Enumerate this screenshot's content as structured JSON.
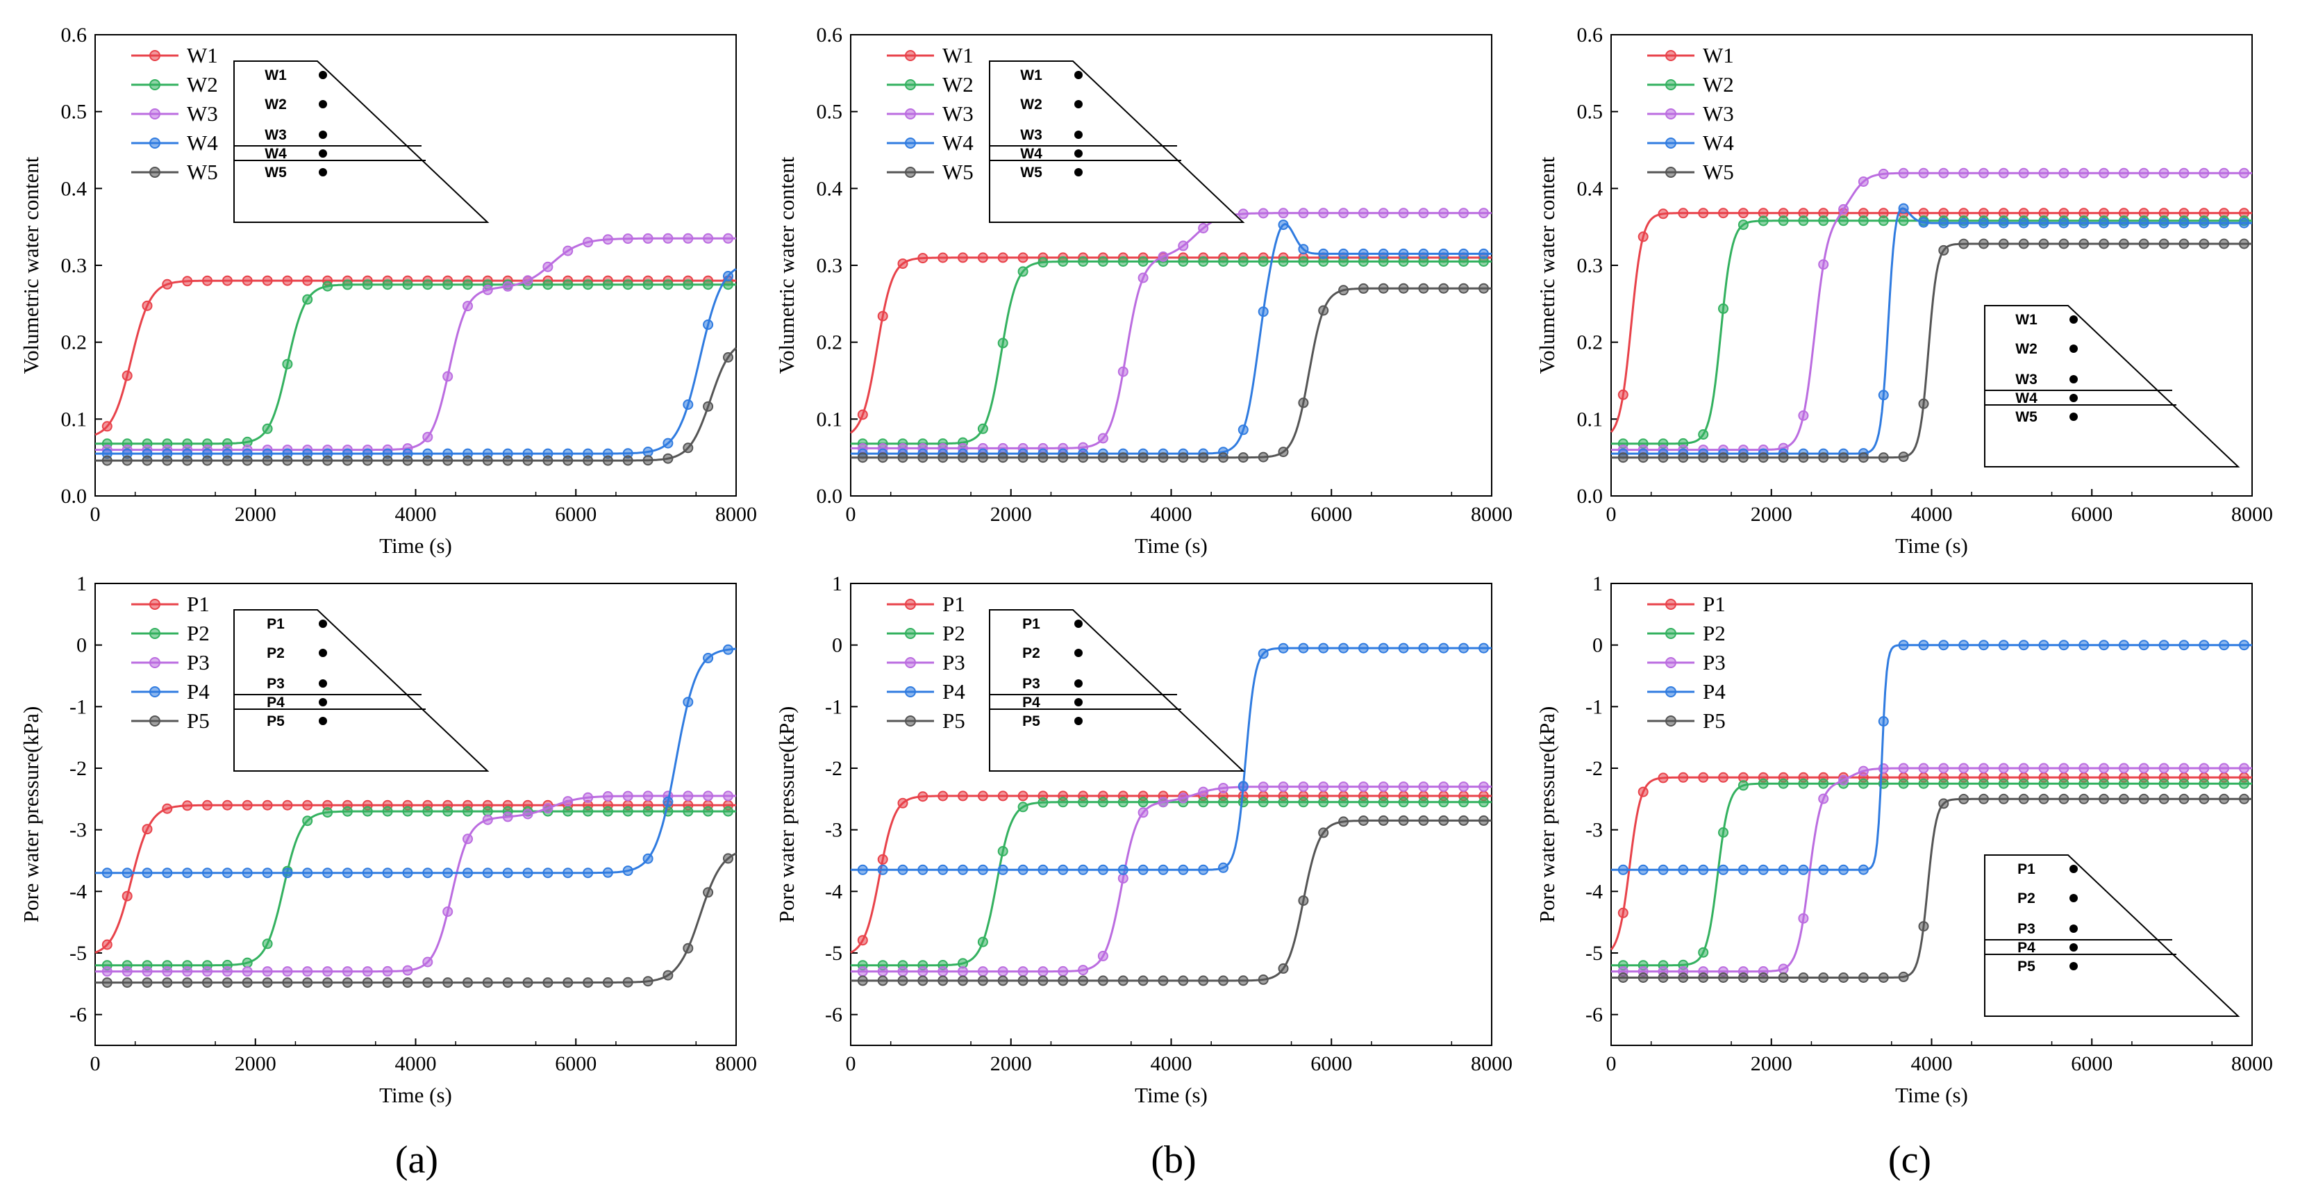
{
  "colors": {
    "W1": "#e8424a",
    "W2": "#33b15f",
    "W3": "#bb6ce0",
    "W4": "#2f7be0",
    "W5": "#555555",
    "P1": "#e8424a",
    "P2": "#33b15f",
    "P3": "#bb6ce0",
    "P4": "#2f7be0",
    "P5": "#555555"
  },
  "panels": [
    {
      "label": "(a)",
      "inset_labels": [
        "W1",
        "W2",
        "W3",
        "W4",
        "W5"
      ],
      "inset_labels_p": [
        "P1",
        "P2",
        "P3",
        "P4",
        "P5"
      ]
    },
    {
      "label": "(b)"
    },
    {
      "label": "(c)"
    }
  ],
  "chart_data": [
    {
      "id": "a-top",
      "type": "line",
      "title": "",
      "xlabel": "Time (s)",
      "ylabel": "Volumetric water content",
      "xlim": [
        0,
        8000
      ],
      "ylim": [
        0,
        0.6
      ],
      "xticks": [
        "0",
        "2000",
        "4000",
        "6000",
        "8000"
      ],
      "yticks": [
        "0.0",
        "0.1",
        "0.2",
        "0.3",
        "0.4",
        "0.5",
        "0.6"
      ],
      "legend": [
        "W1",
        "W2",
        "W3",
        "W4",
        "W5"
      ],
      "legend_position": "top-left",
      "inset": {
        "position": "top-left",
        "labels": [
          "W1",
          "W2",
          "W3",
          "W4",
          "W5"
        ]
      },
      "series": [
        {
          "name": "W1",
          "before": 0.075,
          "after": 0.28,
          "t_rise": 450,
          "width": 120
        },
        {
          "name": "W2",
          "before": 0.068,
          "after": 0.275,
          "t_rise": 2400,
          "width": 110
        },
        {
          "name": "W3",
          "before": 0.06,
          "after": 0.27,
          "t_rise": 4420,
          "width": 110,
          "later": {
            "t": 5700,
            "value": 0.335,
            "width": 180
          }
        },
        {
          "name": "W4",
          "before": 0.055,
          "after": 0.305,
          "t_rise": 7550,
          "width": 140
        },
        {
          "name": "W5",
          "before": 0.046,
          "after": 0.205,
          "t_rise": 7680,
          "width": 130
        }
      ]
    },
    {
      "id": "b-top",
      "type": "line",
      "title": "",
      "xlabel": "Time (s)",
      "ylabel": "Volumetric water content",
      "xlim": [
        0,
        8000
      ],
      "ylim": [
        0,
        0.6
      ],
      "xticks": [
        "0",
        "2000",
        "4000",
        "6000",
        "8000"
      ],
      "yticks": [
        "0.0",
        "0.1",
        "0.2",
        "0.3",
        "0.4",
        "0.5",
        "0.6"
      ],
      "legend": [
        "W1",
        "W2",
        "W3",
        "W4",
        "W5"
      ],
      "legend_position": "top-left",
      "inset": {
        "position": "top-left",
        "labels": [
          "W1",
          "W2",
          "W3",
          "W4",
          "W5"
        ]
      },
      "series": [
        {
          "name": "W1",
          "before": 0.075,
          "after": 0.31,
          "t_rise": 330,
          "width": 95
        },
        {
          "name": "W2",
          "before": 0.068,
          "after": 0.305,
          "t_rise": 1880,
          "width": 95
        },
        {
          "name": "W3",
          "before": 0.062,
          "after": 0.31,
          "t_rise": 3440,
          "width": 100,
          "later": {
            "t": 4300,
            "value": 0.368,
            "width": 150
          }
        },
        {
          "name": "W4",
          "before": 0.055,
          "after": 0.315,
          "t_rise": 5080,
          "width": 90,
          "peak": {
            "t": 5400,
            "value": 0.36
          }
        },
        {
          "name": "W5",
          "before": 0.05,
          "after": 0.27,
          "t_rise": 5720,
          "width": 95
        }
      ]
    },
    {
      "id": "c-top",
      "type": "line",
      "title": "",
      "xlabel": "Time (s)",
      "ylabel": "Volumetric water content",
      "xlim": [
        0,
        8000
      ],
      "ylim": [
        0,
        0.6
      ],
      "xticks": [
        "0",
        "2000",
        "4000",
        "6000",
        "8000"
      ],
      "yticks": [
        "0.0",
        "0.1",
        "0.2",
        "0.3",
        "0.4",
        "0.5",
        "0.6"
      ],
      "legend": [
        "W1",
        "W2",
        "W3",
        "W4",
        "W5"
      ],
      "legend_position": "top-left",
      "inset": {
        "position": "bottom-right",
        "labels": [
          "W1",
          "W2",
          "W3",
          "W4",
          "W5"
        ]
      },
      "series": [
        {
          "name": "W1",
          "before": 0.075,
          "after": 0.368,
          "t_rise": 250,
          "width": 70
        },
        {
          "name": "W2",
          "before": 0.068,
          "after": 0.358,
          "t_rise": 1370,
          "width": 70
        },
        {
          "name": "W3",
          "before": 0.06,
          "after": 0.36,
          "t_rise": 2540,
          "width": 80,
          "later": {
            "t": 3000,
            "value": 0.42,
            "width": 100
          }
        },
        {
          "name": "W4",
          "before": 0.055,
          "after": 0.355,
          "t_rise": 3460,
          "width": 45,
          "peak": {
            "t": 3560,
            "value": 0.385
          }
        },
        {
          "name": "W5",
          "before": 0.05,
          "after": 0.328,
          "t_rise": 3960,
          "width": 55
        }
      ]
    },
    {
      "id": "a-bottom",
      "type": "line",
      "title": "",
      "xlabel": "Time (s)",
      "ylabel": "Pore water pressure(kPa)",
      "xlim": [
        0,
        8000
      ],
      "ylim": [
        -6.5,
        1
      ],
      "xticks": [
        "0",
        "2000",
        "4000",
        "6000",
        "8000"
      ],
      "yticks": [
        "-6",
        "-5",
        "-4",
        "-3",
        "-2",
        "-1",
        "0",
        "1"
      ],
      "legend": [
        "P1",
        "P2",
        "P3",
        "P4",
        "P5"
      ],
      "legend_position": "top-left",
      "inset": {
        "position": "top-left",
        "labels": [
          "P1",
          "P2",
          "P3",
          "P4",
          "P5"
        ]
      },
      "series": [
        {
          "name": "P1",
          "before": -5.05,
          "after": -2.6,
          "t_rise": 450,
          "width": 120
        },
        {
          "name": "P2",
          "before": -5.2,
          "after": -2.7,
          "t_rise": 2350,
          "width": 110
        },
        {
          "name": "P3",
          "before": -5.3,
          "after": -2.8,
          "t_rise": 4450,
          "width": 110,
          "later": {
            "t": 5700,
            "value": -2.45,
            "width": 180
          }
        },
        {
          "name": "P4",
          "before": -3.7,
          "after": -0.05,
          "t_rise": 7250,
          "width": 130
        },
        {
          "name": "P5",
          "before": -5.48,
          "after": -3.3,
          "t_rise": 7550,
          "width": 140
        }
      ]
    },
    {
      "id": "b-bottom",
      "type": "line",
      "title": "",
      "xlabel": "Time (s)",
      "ylabel": "Pore water pressure(kPa)",
      "xlim": [
        0,
        8000
      ],
      "ylim": [
        -6.5,
        1
      ],
      "xticks": [
        "0",
        "2000",
        "4000",
        "6000",
        "8000"
      ],
      "yticks": [
        "-6",
        "-5",
        "-4",
        "-3",
        "-2",
        "-1",
        "0",
        "1"
      ],
      "legend": [
        "P1",
        "P2",
        "P3",
        "P4",
        "P5"
      ],
      "legend_position": "top-left",
      "inset": {
        "position": "top-left",
        "labels": [
          "P1",
          "P2",
          "P3",
          "P4",
          "P5"
        ]
      },
      "series": [
        {
          "name": "P1",
          "before": -5.05,
          "after": -2.45,
          "t_rise": 360,
          "width": 95
        },
        {
          "name": "P2",
          "before": -5.2,
          "after": -2.55,
          "t_rise": 1820,
          "width": 95
        },
        {
          "name": "P3",
          "before": -5.3,
          "after": -2.55,
          "t_rise": 3380,
          "width": 100,
          "later": {
            "t": 4300,
            "value": -2.3,
            "width": 150
          }
        },
        {
          "name": "P4",
          "before": -3.65,
          "after": -0.05,
          "t_rise": 4930,
          "width": 60
        },
        {
          "name": "P5",
          "before": -5.45,
          "after": -2.85,
          "t_rise": 5650,
          "width": 100
        }
      ]
    },
    {
      "id": "c-bottom",
      "type": "line",
      "title": "",
      "xlabel": "Time (s)",
      "ylabel": "Pore water pressure(kPa)",
      "xlim": [
        0,
        8000
      ],
      "ylim": [
        -6.5,
        1
      ],
      "xticks": [
        "0",
        "2000",
        "4000",
        "6000",
        "8000"
      ],
      "yticks": [
        "-6",
        "-5",
        "-4",
        "-3",
        "-2",
        "-1",
        "0",
        "1"
      ],
      "legend": [
        "P1",
        "P2",
        "P3",
        "P4",
        "P5"
      ],
      "legend_position": "top-left",
      "inset": {
        "position": "bottom-right",
        "labels": [
          "P1",
          "P2",
          "P3",
          "P4",
          "P5"
        ]
      },
      "series": [
        {
          "name": "P1",
          "before": -5.05,
          "after": -2.15,
          "t_rise": 230,
          "width": 70
        },
        {
          "name": "P2",
          "before": -5.2,
          "after": -2.25,
          "t_rise": 1330,
          "width": 70
        },
        {
          "name": "P3",
          "before": -5.3,
          "after": -2.25,
          "t_rise": 2470,
          "width": 75,
          "later": {
            "t": 3000,
            "value": -2.0,
            "width": 100
          }
        },
        {
          "name": "P4",
          "before": -3.65,
          "after": 0.0,
          "t_rise": 3380,
          "width": 30
        },
        {
          "name": "P5",
          "before": -5.4,
          "after": -2.5,
          "t_rise": 3950,
          "width": 55
        }
      ]
    }
  ]
}
